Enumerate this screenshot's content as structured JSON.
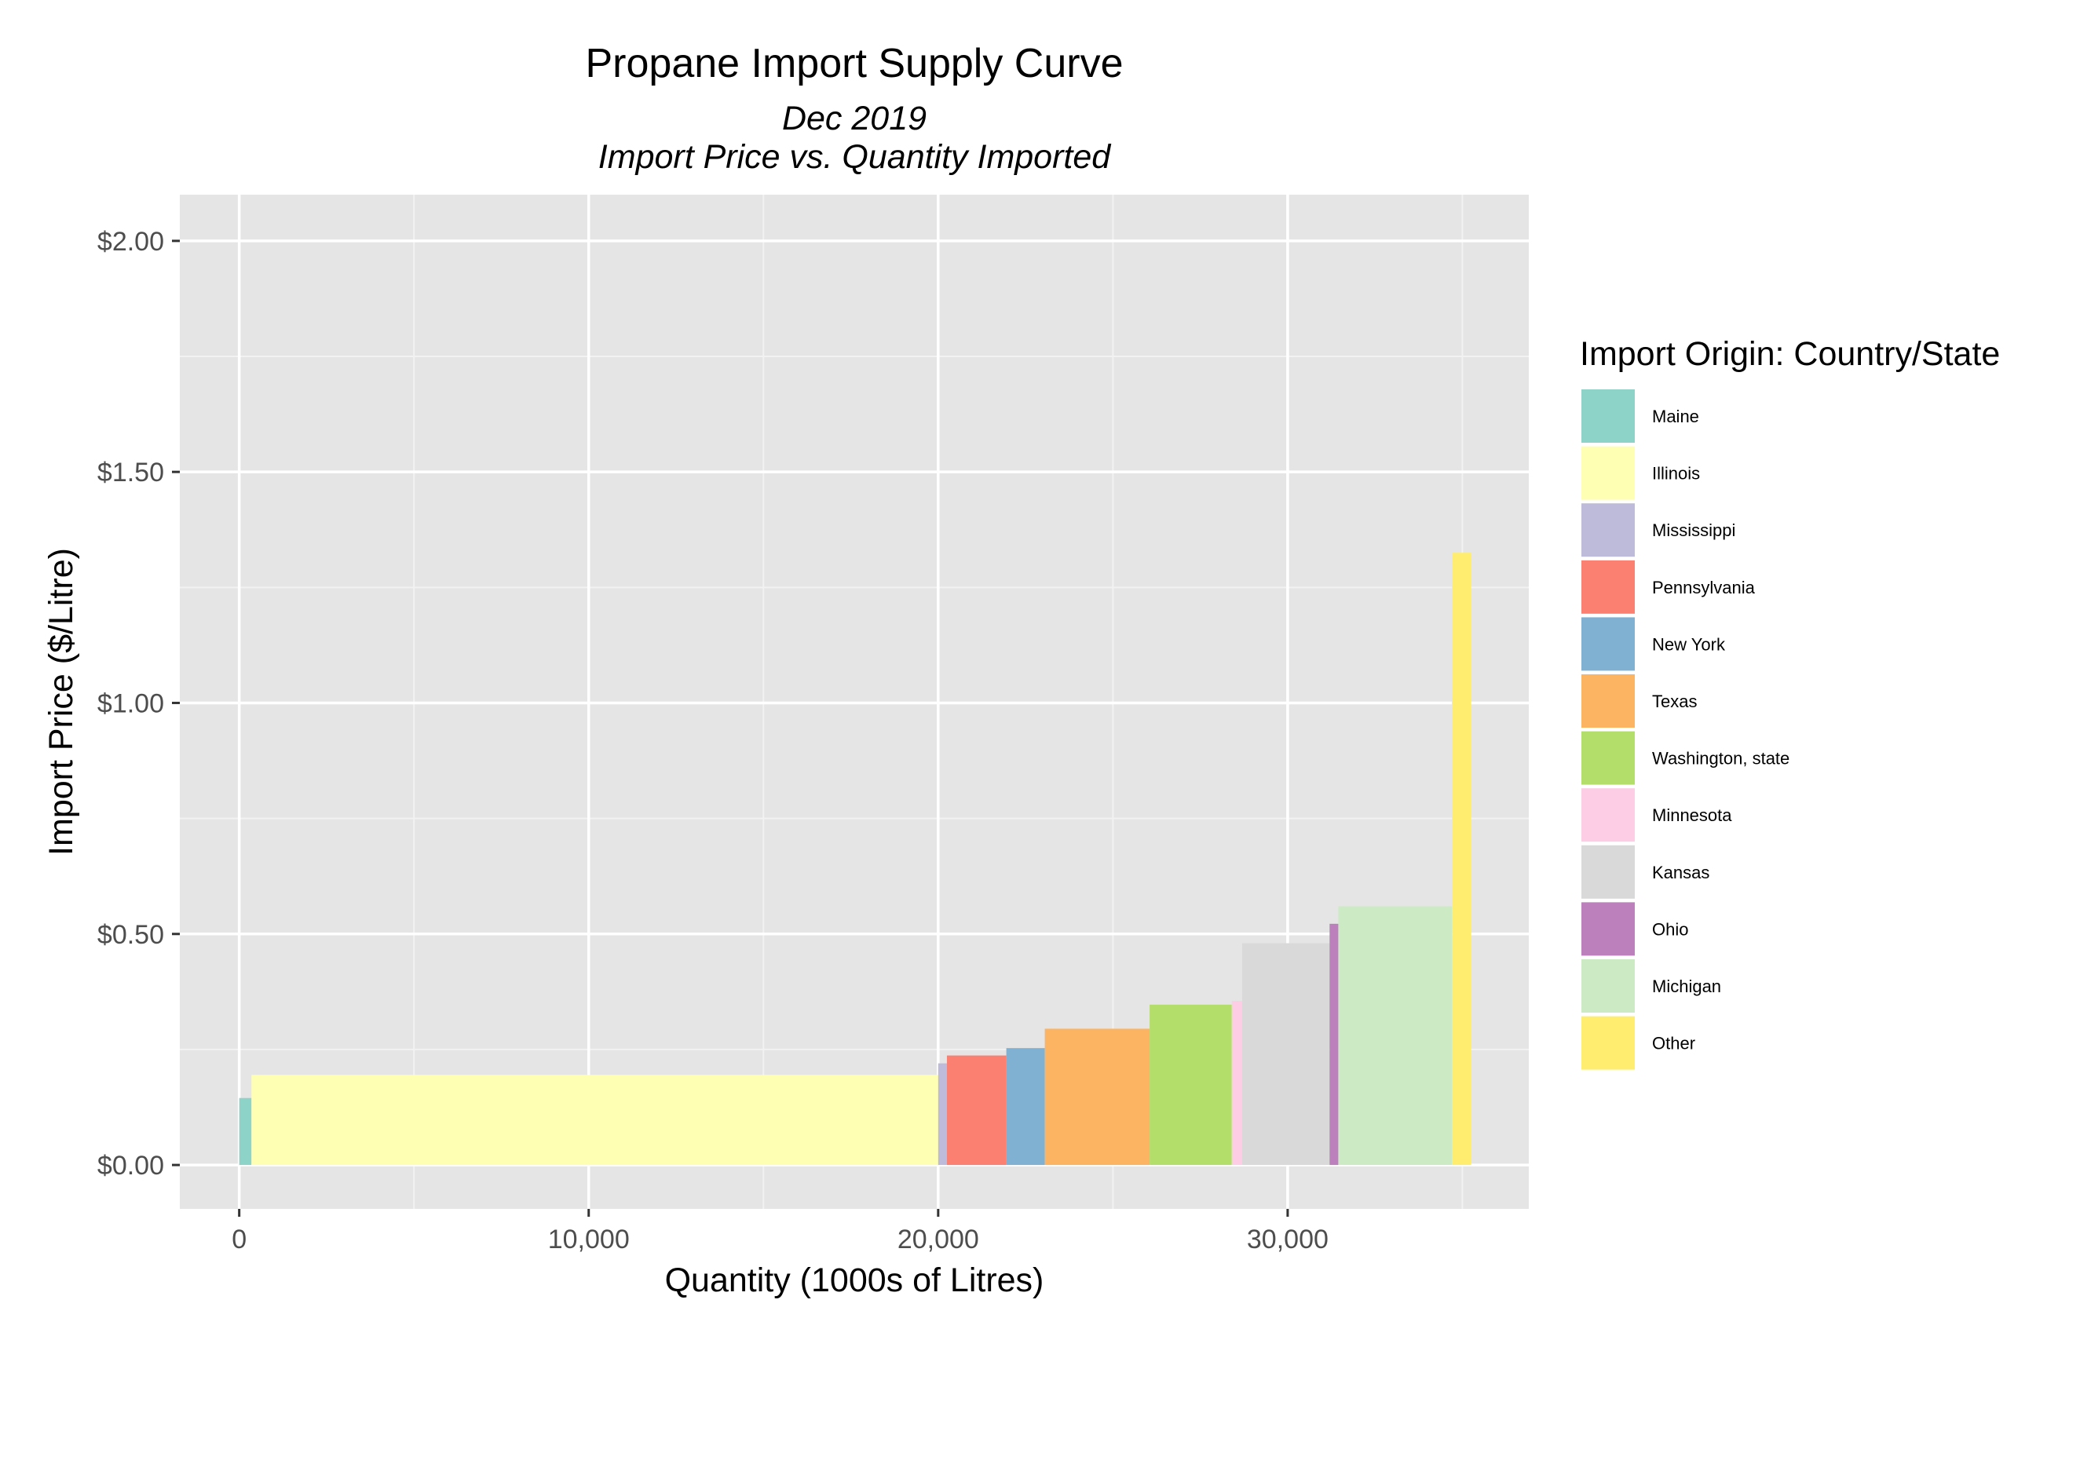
{
  "chart_data": {
    "type": "bar",
    "subtype": "variable-width supply curve",
    "title": "Propane Import Supply Curve",
    "subtitle_lines": [
      "Dec 2019",
      "Import Price vs. Quantity Imported"
    ],
    "xlabel": "Quantity (1000s of Litres)",
    "ylabel": "Import Price ($/Litre)",
    "xlim": [
      -1700,
      36900
    ],
    "ylim": [
      -0.095,
      2.1
    ],
    "x_ticks": [
      0,
      10000,
      20000,
      30000
    ],
    "x_tick_labels": [
      "0",
      "10,000",
      "20,000",
      "30,000"
    ],
    "y_ticks": [
      0,
      0.5,
      1.0,
      1.5,
      2.0
    ],
    "y_tick_labels": [
      "$0.00",
      "$0.50",
      "$1.00",
      "$1.50",
      "$2.00"
    ],
    "grid": true,
    "legend_title": "Import Origin: Country/State",
    "legend_position": "right",
    "series": [
      {
        "name": "Maine",
        "x_start": 0,
        "x_end": 350,
        "price": 0.145,
        "color": "#8DD3C7"
      },
      {
        "name": "Illinois",
        "x_start": 350,
        "x_end": 20000,
        "price": 0.195,
        "color": "#FFFFB3"
      },
      {
        "name": "Mississippi",
        "x_start": 20000,
        "x_end": 20250,
        "price": 0.22,
        "color": "#BEBADA"
      },
      {
        "name": "Pennsylvania",
        "x_start": 20250,
        "x_end": 21950,
        "price": 0.237,
        "color": "#FB8072"
      },
      {
        "name": "New York",
        "x_start": 21950,
        "x_end": 23050,
        "price": 0.253,
        "color": "#80B1D3"
      },
      {
        "name": "Texas",
        "x_start": 23050,
        "x_end": 26050,
        "price": 0.295,
        "color": "#FDB462"
      },
      {
        "name": "Washington, state",
        "x_start": 26050,
        "x_end": 28400,
        "price": 0.347,
        "color": "#B3DE69"
      },
      {
        "name": "Minnesota",
        "x_start": 28400,
        "x_end": 28700,
        "price": 0.355,
        "color": "#FCCDE5"
      },
      {
        "name": "Kansas",
        "x_start": 28700,
        "x_end": 31200,
        "price": 0.48,
        "color": "#D9D9D9"
      },
      {
        "name": "Ohio",
        "x_start": 31200,
        "x_end": 31450,
        "price": 0.522,
        "color": "#BC80BD"
      },
      {
        "name": "Michigan",
        "x_start": 31450,
        "x_end": 34700,
        "price": 0.56,
        "color": "#CCEBC5"
      },
      {
        "name": "Other",
        "x_start": 34700,
        "x_end": 35250,
        "price": 1.325,
        "color": "#FFED6F"
      }
    ]
  }
}
